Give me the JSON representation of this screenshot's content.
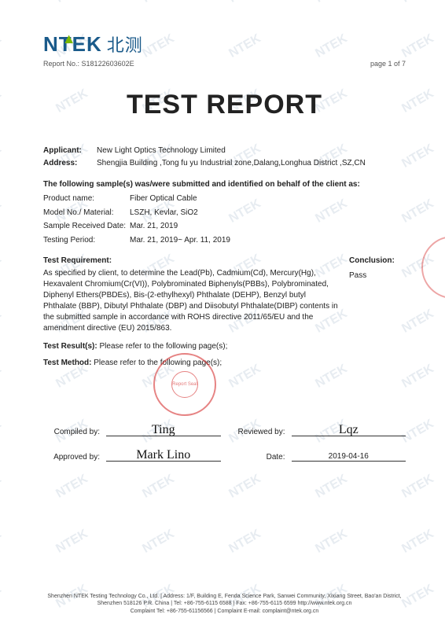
{
  "logo": {
    "brand": "N",
    "brand_t": "T",
    "brand_ek": "EK",
    "cn": "北测"
  },
  "watermark_text": "NTEK",
  "header": {
    "report_no_label": "Report No.:",
    "report_no": "S18122603602E",
    "page_label": "page 1 of 7"
  },
  "title": "TEST REPORT",
  "applicant": {
    "label": "Applicant:",
    "value": "New Light Optics Technology Limited",
    "address_label": "Address:",
    "address": "Shengjia Building ,Tong fu yu Industrial zone,Dalang,Longhua District ,SZ,CN"
  },
  "sample_section_head": "The following sample(s) was/were submitted and identified on behalf of the client as:",
  "sample": {
    "rows": [
      {
        "label": "Product name:",
        "value": "Fiber Optical Cable"
      },
      {
        "label": "Model No./ Material:",
        "value": "LSZH, Kevlar, SiO2"
      },
      {
        "label": "Sample Received Date:",
        "value": "Mar. 21, 2019"
      },
      {
        "label": "Testing Period:",
        "value": "Mar. 21, 2019~ Apr. 11, 2019"
      }
    ]
  },
  "requirement": {
    "head": "Test Requirement:",
    "body": "As specified by client, to determine the Lead(Pb), Cadmium(Cd), Mercury(Hg), Hexavalent Chromium(Cr(VI)), Polybrominated Biphenyls(PBBs), Polybrominated, Diphenyl Ethers(PBDEs), Bis-(2-ethylhexyl) Phthalate (DEHP), Benzyl butyl Phthalate (BBP), Dibutyl Phthalate (DBP) and Diisobutyl Phthalate(DIBP) contents in the submitted sample in accordance with ROHS directive 2011/65/EU and the amendment directive (EU) 2015/863."
  },
  "conclusion": {
    "head": "Conclusion:",
    "value": "Pass"
  },
  "results": {
    "result_label": "Test Result(s):",
    "result_text": " Please refer to the following page(s);",
    "method_label": "Test Method:",
    "method_text": " Please refer to the following page(s);"
  },
  "signatures": {
    "compiled_label": "Compiled by:",
    "compiled_sig": "Ting",
    "reviewed_label": "Reviewed by:",
    "reviewed_sig": "Lqz",
    "approved_label": "Approved by:",
    "approved_sig": "Mark Lino",
    "date_label": "Date:",
    "date_value": "2019-04-16",
    "stamp_text": "Report Seal"
  },
  "footer": {
    "line1": "Shenzhen NTEK Testing Technology Co., Ltd. | Address: 1/F, Building E, Fenda Science Park, Sanwei Community, Xixiang Street, Bao'an District, Shenzhen 518126 P.R. China | Tel: +86-755-6115 6588 | Fax: +86-755-6115 6599   http://www.ntek.org.cn",
    "line2": "Complaint Tel: +86-755-61156566 | Complaint E-mail: complaint@ntek.org.cn"
  },
  "style": {
    "brand_color": "#1a5a8a",
    "accent_color": "#7ab800",
    "stamp_color": "rgba(210,30,30,0.55)",
    "watermark_color": "rgba(120,150,180,0.18)"
  }
}
